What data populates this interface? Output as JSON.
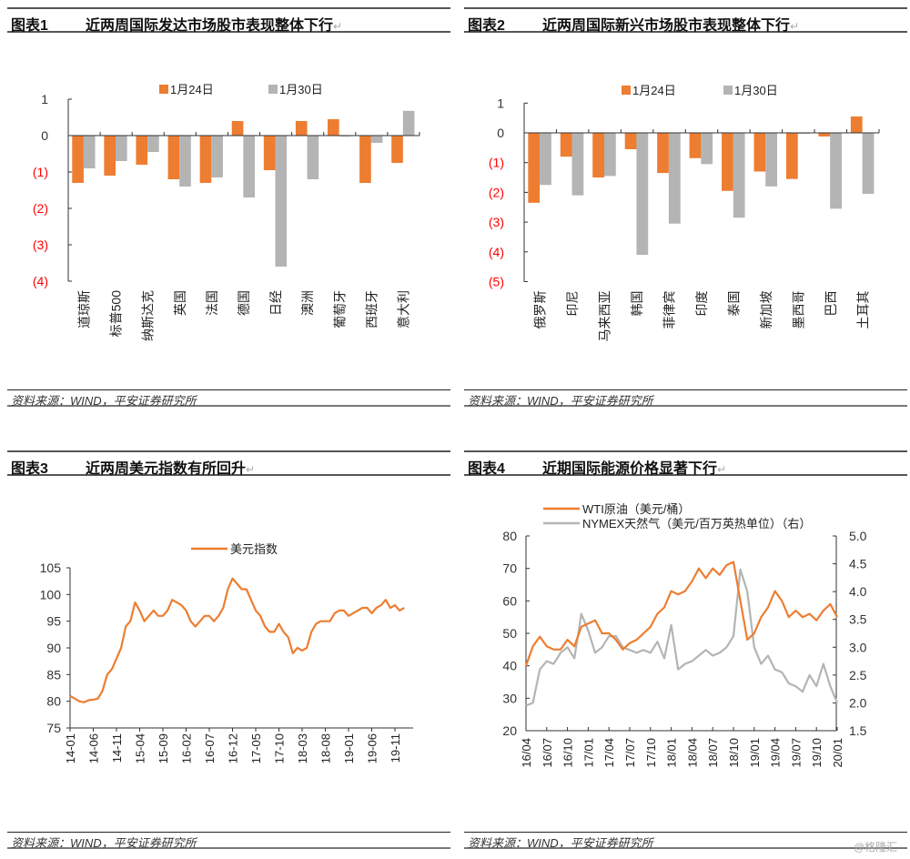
{
  "source_text": "资料来源：WIND，平安证券研究所",
  "watermark": "@格隆汇",
  "return_mark": "↵",
  "figures": [
    {
      "number": "图表1",
      "title": "近两周国际发达市场股市表现整体下行"
    },
    {
      "number": "图表2",
      "title": "近两周国际新兴市场股市表现整体下行"
    },
    {
      "number": "图表3",
      "title": "近两周美元指数有所回升"
    },
    {
      "number": "图表4",
      "title": "近期国际能源价格显著下行"
    }
  ],
  "colors": {
    "orange": "#ed7d31",
    "gray": "#b4b4b4",
    "negative_tick": "#ff0000"
  },
  "chart_data": [
    {
      "type": "bar",
      "title": "近两周国际发达市场股市表现整体下行",
      "categories": [
        "道琼斯",
        "标普500",
        "纳斯达克",
        "英国",
        "法国",
        "德国",
        "日经",
        "澳洲",
        "葡萄牙",
        "西班牙",
        "意大利"
      ],
      "series": [
        {
          "name": "1月24日",
          "values": [
            -1.3,
            -1.1,
            -0.8,
            -1.2,
            -1.3,
            0.4,
            -0.95,
            0.4,
            0.45,
            -1.3,
            -0.75
          ]
        },
        {
          "name": "1月30日",
          "values": [
            -0.9,
            -0.7,
            -0.45,
            -1.4,
            -1.15,
            -1.7,
            -3.6,
            -1.2,
            -0.02,
            -0.2,
            0.68
          ]
        }
      ],
      "yticks": [
        1,
        0,
        -1,
        -2,
        -3,
        -4
      ],
      "ytick_labels": [
        "1",
        "0",
        "(1)",
        "(2)",
        "(3)",
        "(4)"
      ],
      "ylim": [
        -4,
        1
      ],
      "legend": "top-center"
    },
    {
      "type": "bar",
      "title": "近两周国际新兴市场股市表现整体下行",
      "categories": [
        "俄罗斯",
        "印尼",
        "马来西亚",
        "韩国",
        "菲律宾",
        "印度",
        "泰国",
        "新加坡",
        "墨西哥",
        "巴西",
        "土耳其"
      ],
      "series": [
        {
          "name": "1月24日",
          "values": [
            -2.35,
            -0.8,
            -1.5,
            -0.55,
            -1.35,
            -0.85,
            -1.95,
            -1.3,
            -1.55,
            -0.12,
            0.55
          ]
        },
        {
          "name": "1月30日",
          "values": [
            -1.75,
            -2.1,
            -1.45,
            -4.1,
            -3.05,
            -1.05,
            -2.85,
            -1.8,
            -0.02,
            -2.55,
            -2.05
          ]
        }
      ],
      "yticks": [
        1,
        0,
        -1,
        -2,
        -3,
        -4,
        -5
      ],
      "ytick_labels": [
        "1",
        "0",
        "(1)",
        "(2)",
        "(3)",
        "(4)",
        "(5)"
      ],
      "ylim": [
        -5,
        1
      ],
      "legend": "top-center"
    },
    {
      "type": "line",
      "title": "近两周美元指数有所回升",
      "x_start": "2014-01",
      "x_step": "month",
      "series": [
        {
          "name": "美元指数",
          "values": [
            81,
            80.5,
            80,
            79.8,
            80.2,
            80.3,
            80.5,
            82,
            85,
            86,
            88,
            90,
            94,
            95,
            98.5,
            97,
            95,
            96,
            97,
            96,
            96,
            97,
            99,
            98.5,
            98,
            97,
            95,
            94,
            95,
            96,
            96,
            95,
            96,
            97.5,
            101,
            103,
            102,
            101,
            101,
            99,
            97,
            96,
            94,
            93,
            93,
            94.5,
            93,
            92,
            89,
            90,
            89.5,
            90,
            93,
            94.5,
            95,
            95,
            95,
            96.5,
            97,
            97,
            96,
            96.5,
            97,
            97.5,
            97.5,
            96.5,
            97.5,
            98,
            99,
            97.5,
            98,
            97,
            97.5
          ]
        }
      ],
      "xtick_labels": [
        "14-01",
        "14-06",
        "14-11",
        "15-04",
        "15-09",
        "16-02",
        "16-07",
        "16-12",
        "17-05",
        "17-10",
        "18-03",
        "18-08",
        "19-01",
        "19-06",
        "19-11"
      ],
      "xtick_step_months": 5,
      "yticks": [
        75,
        80,
        85,
        90,
        95,
        100,
        105
      ],
      "ylim": [
        75,
        105
      ],
      "legend": "top-center"
    },
    {
      "type": "line",
      "title": "近期国际能源价格显著下行",
      "x_start": "2016-04",
      "x_step": "month",
      "series": [
        {
          "name": "WTI原油（美元/桶）",
          "axis": "left",
          "values": [
            40,
            46,
            49,
            46,
            45,
            45,
            48,
            46,
            52,
            53,
            54,
            50,
            50,
            48,
            45,
            47,
            48,
            50,
            52,
            56,
            58,
            63,
            62,
            63,
            66,
            70,
            67,
            70,
            68,
            71,
            72,
            60,
            48,
            50,
            55,
            58,
            63,
            60,
            55,
            57,
            55,
            56,
            54,
            57,
            59,
            55
          ]
        },
        {
          "name": "NYMEX天然气（美元/百万英热单位）（右）",
          "axis": "right",
          "values": [
            1.95,
            2.0,
            2.6,
            2.75,
            2.7,
            2.9,
            3.0,
            2.8,
            3.6,
            3.3,
            2.9,
            3.0,
            3.2,
            3.2,
            3.0,
            2.95,
            2.9,
            2.95,
            2.9,
            3.1,
            2.8,
            3.4,
            2.6,
            2.7,
            2.75,
            2.85,
            2.95,
            2.85,
            2.9,
            3.0,
            3.2,
            4.4,
            4.0,
            3.0,
            2.7,
            2.85,
            2.6,
            2.55,
            2.35,
            2.3,
            2.2,
            2.5,
            2.3,
            2.7,
            2.3,
            2.0
          ]
        }
      ],
      "xtick_labels": [
        "16/04",
        "16/07",
        "16/10",
        "17/01",
        "17/04",
        "17/07",
        "17/10",
        "18/01",
        "18/04",
        "18/07",
        "18/10",
        "19/01",
        "19/04",
        "19/07",
        "19/10",
        "20/01"
      ],
      "xtick_step_months": 3,
      "yticks_left": [
        20,
        30,
        40,
        50,
        60,
        70,
        80
      ],
      "ylim_left": [
        20,
        80
      ],
      "yticks_right": [
        "1.5",
        "2.0",
        "2.5",
        "3.0",
        "3.5",
        "4.0",
        "4.5",
        "5.0"
      ],
      "ylim_right": [
        1.5,
        5.0
      ],
      "legend": "top-left"
    }
  ]
}
